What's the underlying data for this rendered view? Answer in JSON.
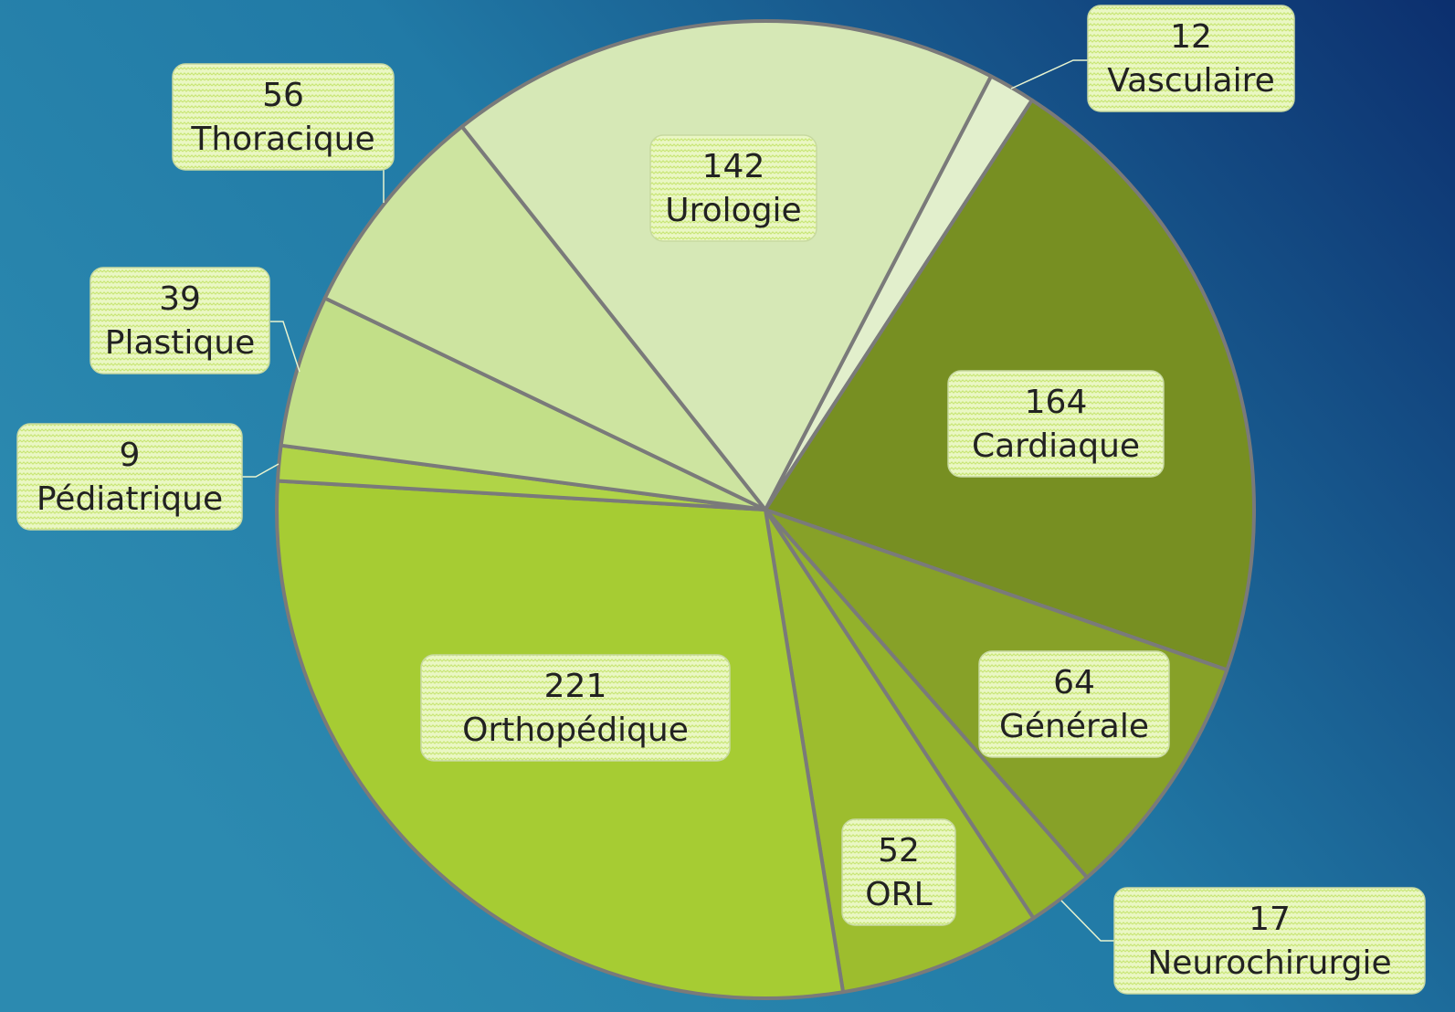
{
  "chart_data": {
    "type": "pie",
    "categories": [
      "Vasculaire",
      "Cardiaque",
      "Générale",
      "Neurochirurgie",
      "ORL",
      "Orthopédique",
      "Pédiatrique",
      "Plastique",
      "Thoracique",
      "Urologie"
    ],
    "values": [
      12,
      164,
      64,
      17,
      52,
      221,
      9,
      39,
      56,
      142
    ],
    "colors": [
      "#e2efcc",
      "#778f22",
      "#87a128",
      "#93b22b",
      "#9dbd2e",
      "#a6cc33",
      "#b0d447",
      "#c2df88",
      "#cde4a0",
      "#d6e8b6"
    ]
  }
}
